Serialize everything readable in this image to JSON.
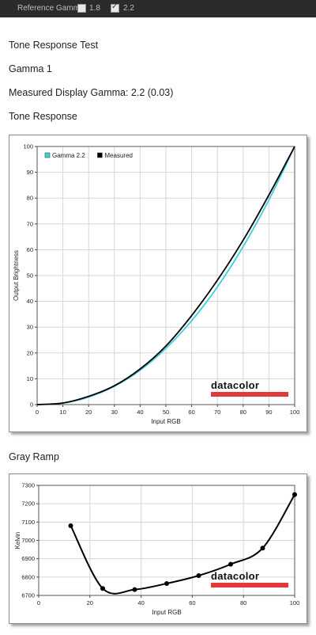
{
  "toolbar": {
    "reference_label": "Reference Gamma:",
    "options": [
      {
        "label": "1.8",
        "checked": false
      },
      {
        "label": "2.2",
        "checked": true
      }
    ]
  },
  "report": {
    "title": "Tone Response Test",
    "subtitle": "Gamma 1",
    "measured_gamma_text": "Measured Display Gamma: 2.2 (0.03)",
    "tone_section": "Tone Response",
    "gray_section": "Gray Ramp"
  },
  "brand": "datacolor",
  "colors": {
    "gamma_line": "#3fd0d8",
    "measured_line": "#000000",
    "brand_bar": "#e23a3a"
  },
  "chart_data": [
    {
      "type": "line",
      "xlabel": "Input RGB",
      "ylabel": "Output Brightness",
      "xlim": [
        0,
        100
      ],
      "ylim": [
        0,
        100
      ],
      "xticks": [
        0,
        10,
        20,
        30,
        40,
        50,
        60,
        70,
        80,
        90,
        100
      ],
      "yticks": [
        0,
        10,
        20,
        30,
        40,
        50,
        60,
        70,
        80,
        90,
        100
      ],
      "grid": true,
      "legend": "top-left",
      "series": [
        {
          "name": "Gamma 2.2",
          "x": [
            0,
            10,
            20,
            30,
            40,
            50,
            60,
            70,
            80,
            90,
            100
          ],
          "values": [
            0,
            0.6,
            2.9,
            7.1,
            13.3,
            21.8,
            32.5,
            45.6,
            61.2,
            79.3,
            100
          ]
        },
        {
          "name": "Measured",
          "x": [
            0,
            10,
            20,
            30,
            40,
            50,
            60,
            70,
            80,
            90,
            100
          ],
          "values": [
            0,
            0.6,
            3.2,
            7.3,
            13.8,
            22.7,
            34.5,
            48.2,
            63.7,
            81.2,
            100
          ]
        }
      ]
    },
    {
      "type": "line",
      "xlabel": "Input RGB",
      "ylabel": "Kelvin",
      "xlim": [
        0,
        100
      ],
      "ylim": [
        6700,
        7300
      ],
      "xticks": [
        0,
        20,
        40,
        60,
        80,
        100
      ],
      "yticks": [
        6700,
        6800,
        6900,
        7000,
        7100,
        7200,
        7300
      ],
      "grid": true,
      "series": [
        {
          "x": [
            12.5,
            25,
            37.5,
            50,
            62.5,
            75,
            87.5,
            100
          ],
          "values": [
            7080,
            6738,
            6732,
            6765,
            6808,
            6870,
            6958,
            7250
          ]
        }
      ]
    }
  ]
}
